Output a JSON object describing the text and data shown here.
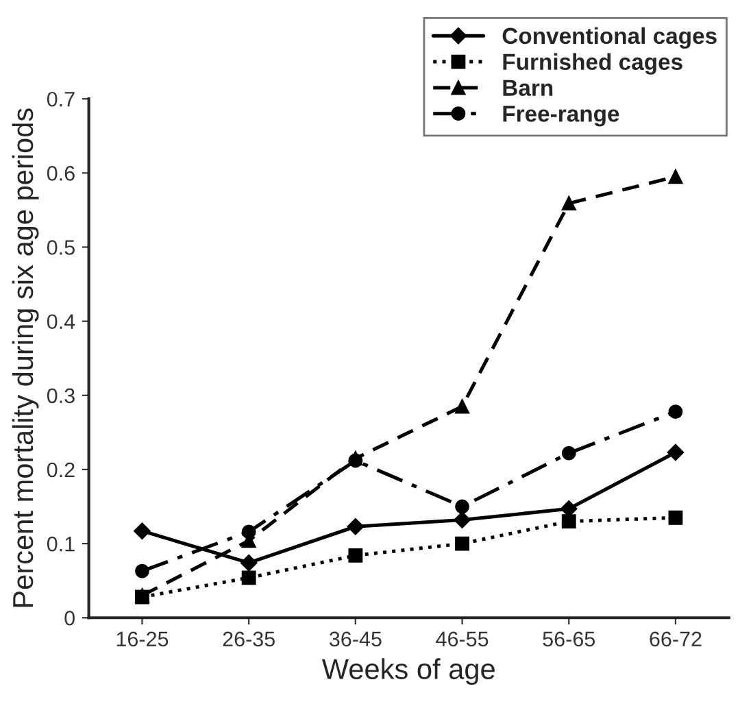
{
  "chart_data": {
    "type": "line",
    "xlabel": "Weeks of age",
    "ylabel": "Percent mortality during six age periods",
    "categories": [
      "16-25",
      "26-35",
      "36-45",
      "46-55",
      "56-65",
      "66-72"
    ],
    "series": [
      {
        "name": "Conventional cages",
        "color": "#000000",
        "marker": "diamond",
        "line_style": "solid",
        "values": [
          0.117,
          0.074,
          0.123,
          0.132,
          0.147,
          0.223
        ]
      },
      {
        "name": "Furnished cages",
        "color": "#000000",
        "marker": "square",
        "line_style": "dotted",
        "values": [
          0.028,
          0.054,
          0.084,
          0.1,
          0.13,
          0.135
        ]
      },
      {
        "name": "Barn",
        "color": "#000000",
        "marker": "triangle",
        "line_style": "dashed",
        "values": [
          0.03,
          0.104,
          0.215,
          0.285,
          0.559,
          0.595
        ]
      },
      {
        "name": "Free-range",
        "color": "#000000",
        "marker": "circle",
        "line_style": "dashdot",
        "values": [
          0.063,
          0.116,
          0.212,
          0.15,
          0.222,
          0.278
        ]
      }
    ],
    "ylim": [
      0,
      0.7
    ],
    "yticks": [
      0,
      0.1,
      0.2,
      0.3,
      0.4,
      0.5,
      0.6,
      0.7
    ],
    "grid": false,
    "legend": "top right"
  }
}
